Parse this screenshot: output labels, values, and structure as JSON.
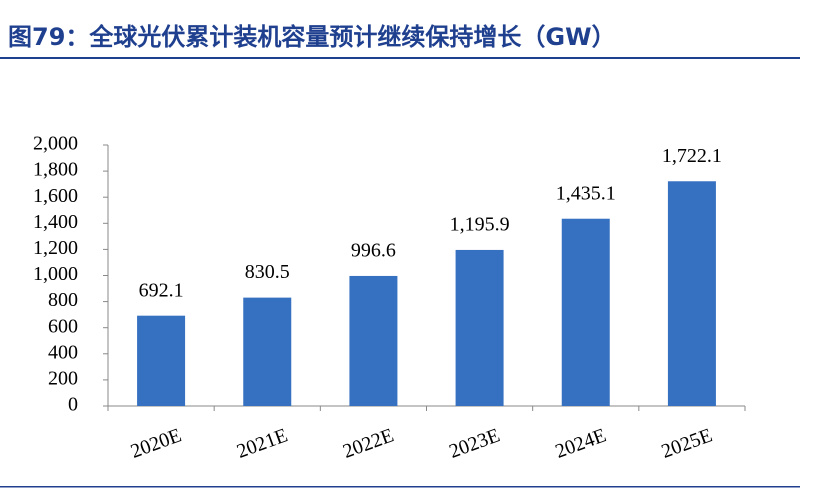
{
  "chart_data": {
    "type": "bar",
    "title": "图79：全球光伏累计装机容量预计继续保持增长（GW）",
    "categories": [
      "2020E",
      "2021E",
      "2022E",
      "2023E",
      "2024E",
      "2025E"
    ],
    "values": [
      692.1,
      830.5,
      996.6,
      1195.9,
      1435.1,
      1722.1
    ],
    "value_labels": [
      "692.1",
      "830.5",
      "996.6",
      "1,195.9",
      "1,435.1",
      "1,722.1"
    ],
    "color": "#3671c1",
    "ylim": [
      0,
      2000
    ],
    "yticks": [
      0,
      200,
      400,
      600,
      800,
      {
        "value": 1000,
        "label": "1,000"
      },
      {
        "value": 1200,
        "label": "1,200"
      },
      {
        "value": 1400,
        "label": "1,400"
      },
      {
        "value": 1600,
        "label": "1,600"
      },
      {
        "value": 1800,
        "label": "1,800"
      },
      {
        "value": 2000,
        "label": "2,000"
      }
    ],
    "grid": false
  }
}
